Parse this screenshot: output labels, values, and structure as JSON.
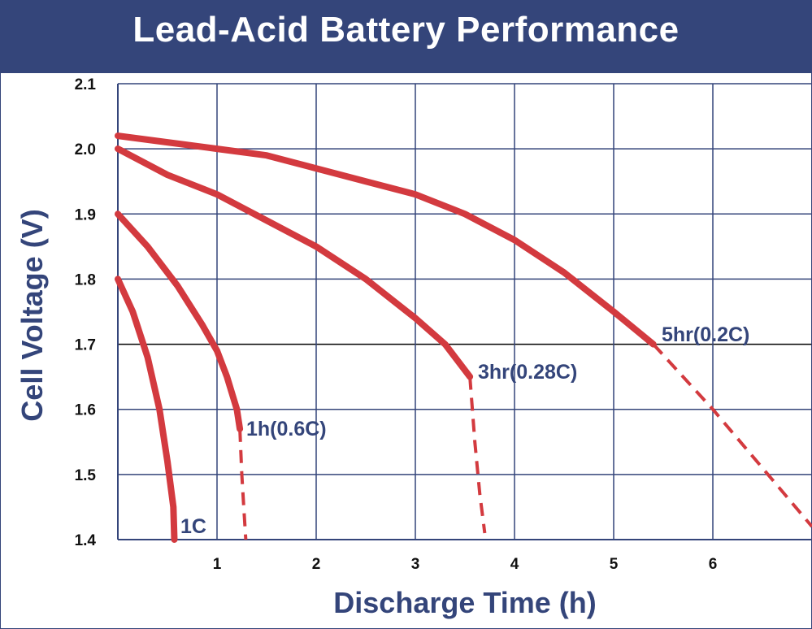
{
  "chart_data": {
    "type": "line",
    "title": "Lead-Acid Battery Performance",
    "xlabel": "Discharge Time (h)",
    "ylabel": "Cell Voltage (V)",
    "xlim": [
      0,
      7
    ],
    "ylim": [
      1.4,
      2.1
    ],
    "x_ticks": [
      "1",
      "2",
      "3",
      "4",
      "5",
      "6"
    ],
    "y_ticks": [
      "1.4",
      "1.5",
      "1.6",
      "1.7",
      "1.8",
      "1.9",
      "2.0",
      "2.1"
    ],
    "reference_line": 1.7,
    "grid": true,
    "line_color": "#d33a3f",
    "grid_color": "#34457a",
    "series": [
      {
        "name": "1C",
        "solid": [
          [
            0.0,
            1.8
          ],
          [
            0.15,
            1.75
          ],
          [
            0.3,
            1.68
          ],
          [
            0.42,
            1.6
          ],
          [
            0.5,
            1.52
          ],
          [
            0.56,
            1.45
          ],
          [
            0.57,
            1.4
          ]
        ],
        "dashed": []
      },
      {
        "name": "1h(0.6C)",
        "solid": [
          [
            0.0,
            1.9
          ],
          [
            0.3,
            1.85
          ],
          [
            0.6,
            1.79
          ],
          [
            0.85,
            1.73
          ],
          [
            1.0,
            1.69
          ],
          [
            1.1,
            1.65
          ],
          [
            1.2,
            1.6
          ],
          [
            1.23,
            1.57
          ]
        ],
        "dashed": [
          [
            1.23,
            1.57
          ],
          [
            1.25,
            1.5
          ],
          [
            1.27,
            1.45
          ],
          [
            1.29,
            1.4
          ]
        ]
      },
      {
        "name": "3hr(0.28C)",
        "solid": [
          [
            0.0,
            2.0
          ],
          [
            0.5,
            1.96
          ],
          [
            1.0,
            1.93
          ],
          [
            1.5,
            1.89
          ],
          [
            2.0,
            1.85
          ],
          [
            2.5,
            1.8
          ],
          [
            3.0,
            1.74
          ],
          [
            3.3,
            1.7
          ],
          [
            3.5,
            1.66
          ],
          [
            3.55,
            1.65
          ]
        ],
        "dashed": [
          [
            3.55,
            1.65
          ],
          [
            3.6,
            1.55
          ],
          [
            3.65,
            1.47
          ],
          [
            3.7,
            1.41
          ]
        ]
      },
      {
        "name": "5hr(0.2C)",
        "solid": [
          [
            0.0,
            2.02
          ],
          [
            0.5,
            2.01
          ],
          [
            1.0,
            2.0
          ],
          [
            1.5,
            1.99
          ],
          [
            2.0,
            1.97
          ],
          [
            2.5,
            1.95
          ],
          [
            3.0,
            1.93
          ],
          [
            3.5,
            1.9
          ],
          [
            4.0,
            1.86
          ],
          [
            4.5,
            1.81
          ],
          [
            5.0,
            1.75
          ],
          [
            5.4,
            1.7
          ]
        ],
        "dashed": [
          [
            5.4,
            1.7
          ],
          [
            6.0,
            1.6
          ],
          [
            6.5,
            1.51
          ],
          [
            7.0,
            1.42
          ]
        ]
      }
    ]
  }
}
